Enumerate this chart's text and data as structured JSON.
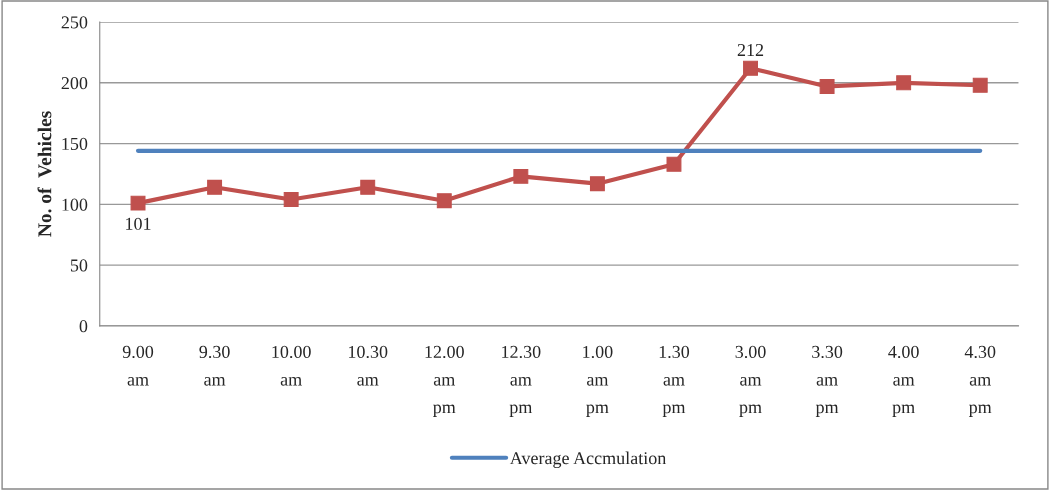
{
  "chart_data": {
    "type": "line",
    "categories": [
      "9.00\nam",
      "9.30\nam",
      "10.00\nam",
      "10.30\nam",
      "12.00\nam\npm",
      "12.30\nam\npm",
      "1.00\nam\npm",
      "1.30\nam\npm",
      "3.00\nam\npm",
      "3.30\nam\npm",
      "4.00\nam\npm",
      "4.30\nam\npm"
    ],
    "ylabel": "No. of  Vehicles",
    "series": [
      {
        "color": "#c0504d",
        "marker": "square",
        "values": [
          101,
          114,
          104,
          114,
          103,
          123,
          117,
          133,
          212,
          197,
          200,
          198
        ],
        "value_labels": [
          "101",
          null,
          null,
          null,
          null,
          null,
          null,
          null,
          "212",
          null,
          null,
          null
        ]
      },
      {
        "name": "Average Accmulation",
        "color": "#4f81bd",
        "marker": "none",
        "values": [
          144,
          144,
          144,
          144,
          144,
          144,
          144,
          144,
          144,
          144,
          144,
          144
        ]
      }
    ],
    "ylim": [
      0,
      250
    ],
    "yticks": [
      0,
      50,
      100,
      150,
      200,
      250
    ],
    "grid": "y",
    "legend": "bottom"
  }
}
